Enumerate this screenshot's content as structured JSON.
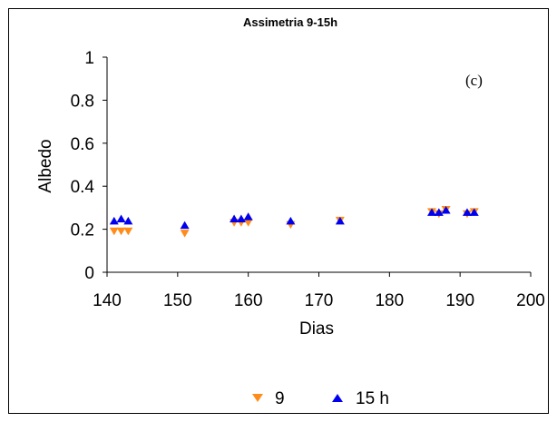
{
  "chart_data": {
    "type": "scatter",
    "title": "Assimetria 9-15h",
    "xlabel": "Dias",
    "ylabel": "Albedo",
    "xlim": [
      140,
      200
    ],
    "ylim": [
      0,
      1
    ],
    "xticks": [
      "140",
      "150",
      "160",
      "170",
      "180",
      "190",
      "200"
    ],
    "yticks": [
      "0",
      "0.2",
      "0.4",
      "0.6",
      "0.8",
      "1"
    ],
    "xtick_values": [
      140,
      150,
      160,
      170,
      180,
      190,
      200
    ],
    "ytick_values": [
      0,
      0.2,
      0.4,
      0.6,
      0.8,
      1
    ],
    "grid": false,
    "legend_position": "bottom",
    "annotation": "(c)",
    "series": [
      {
        "name": "9",
        "marker": "triangle-down",
        "color": "#FF8C1A",
        "points": [
          [
            141,
            0.19
          ],
          [
            142,
            0.19
          ],
          [
            143,
            0.19
          ],
          [
            151,
            0.18
          ],
          [
            158,
            0.23
          ],
          [
            159,
            0.23
          ],
          [
            160,
            0.23
          ],
          [
            166,
            0.22
          ],
          [
            173,
            0.24
          ],
          [
            186,
            0.28
          ],
          [
            187,
            0.27
          ],
          [
            188,
            0.29
          ],
          [
            191,
            0.27
          ],
          [
            192,
            0.28
          ]
        ]
      },
      {
        "name": "15 h",
        "marker": "triangle-up",
        "color": "#0000EE",
        "points": [
          [
            141,
            0.24
          ],
          [
            142,
            0.25
          ],
          [
            143,
            0.24
          ],
          [
            151,
            0.22
          ],
          [
            158,
            0.25
          ],
          [
            159,
            0.25
          ],
          [
            160,
            0.26
          ],
          [
            166,
            0.24
          ],
          [
            173,
            0.24
          ],
          [
            186,
            0.28
          ],
          [
            187,
            0.28
          ],
          [
            188,
            0.29
          ],
          [
            191,
            0.28
          ],
          [
            192,
            0.28
          ]
        ]
      }
    ]
  }
}
